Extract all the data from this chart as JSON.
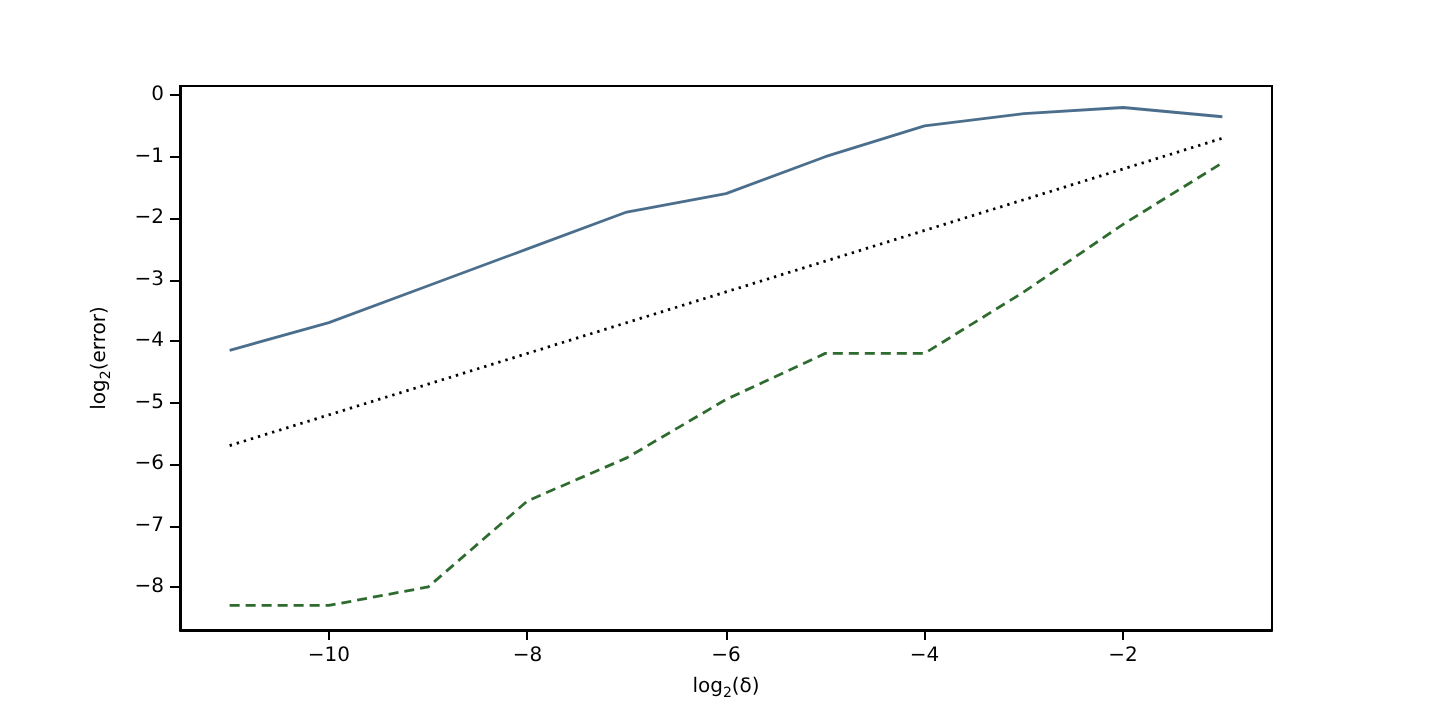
{
  "chart_data": {
    "type": "line",
    "xlabel": "log$_{2}$(δ)",
    "ylabel": "log$_{2}$(error)",
    "x": [
      -11,
      -10,
      -9,
      -8,
      -7,
      -6,
      -5,
      -4,
      -3,
      -2,
      -1
    ],
    "series": [
      {
        "color": "#4a6e8c",
        "line_style": "solid",
        "values": [
          -4.15,
          -3.7,
          -3.1,
          -2.5,
          -1.9,
          -1.6,
          -1.0,
          -0.5,
          -0.3,
          -0.2,
          -0.35
        ]
      },
      {
        "color": "#000000",
        "line_style": "dotted",
        "values": [
          -5.7,
          -5.2,
          -4.7,
          -4.2,
          -3.7,
          -3.2,
          -2.7,
          -2.2,
          -1.7,
          -1.2,
          -0.7
        ]
      },
      {
        "color": "#2e6b2e",
        "line_style": "dashed",
        "values": [
          -8.3,
          -8.3,
          -8.0,
          -6.6,
          -5.9,
          -4.95,
          -4.2,
          -4.2,
          -3.2,
          -2.1,
          -1.1
        ]
      }
    ],
    "xlim": [
      -11.5,
      -0.5
    ],
    "xticks": [
      -10,
      -8,
      -6,
      -4,
      -2
    ],
    "ylim": [
      -8.7,
      0.15
    ],
    "yticks": [
      -8,
      -7,
      -6,
      -5,
      -4,
      -3,
      -2,
      -1,
      0
    ],
    "grid": false,
    "marker": "none"
  }
}
